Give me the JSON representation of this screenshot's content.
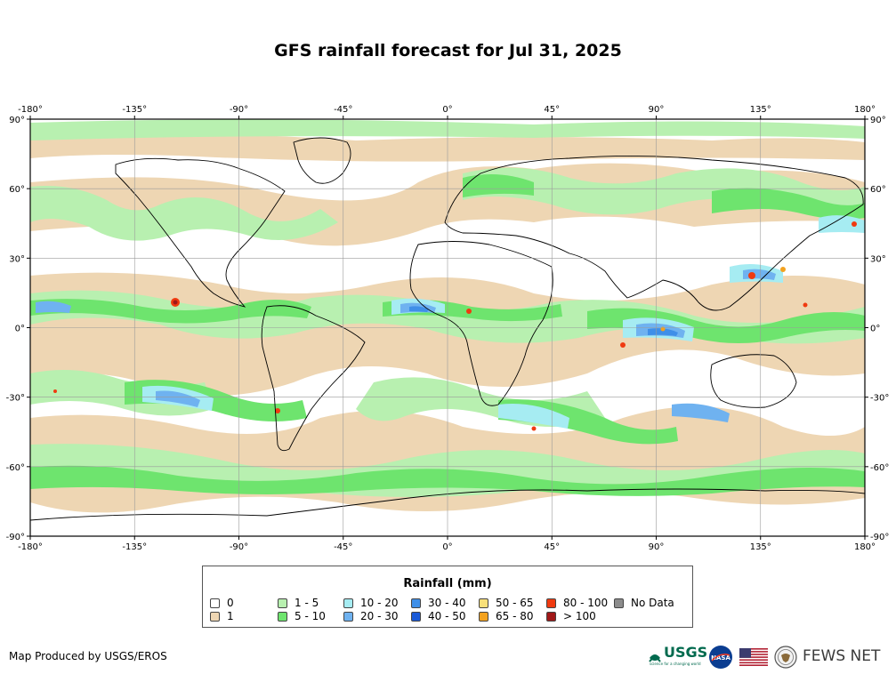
{
  "title": "GFS rainfall forecast for Jul 31, 2025",
  "axes": {
    "lon_ticks": [
      "-180°",
      "-135°",
      "-90°",
      "-45°",
      "0°",
      "45°",
      "90°",
      "135°",
      "180°"
    ],
    "lat_ticks": [
      "90°",
      "60°",
      "30°",
      "0°",
      "-30°",
      "-60°",
      "-90°"
    ]
  },
  "legend": {
    "title": "Rainfall (mm)",
    "items": [
      {
        "label": "0",
        "color": "#ffffff"
      },
      {
        "label": "1",
        "color": "#eed6b3"
      },
      {
        "label": "1 - 5",
        "color": "#b8f0b0"
      },
      {
        "label": "5 - 10",
        "color": "#6ee46e"
      },
      {
        "label": "10 - 20",
        "color": "#a6ecf2"
      },
      {
        "label": "20 - 30",
        "color": "#6fb2f0"
      },
      {
        "label": "30 - 40",
        "color": "#3f8fe8"
      },
      {
        "label": "40 - 50",
        "color": "#1a5ad8"
      },
      {
        "label": "50 - 65",
        "color": "#f8e07a"
      },
      {
        "label": "65 - 80",
        "color": "#f3a21f"
      },
      {
        "label": "80 - 100",
        "color": "#f03a10"
      },
      {
        "label": "> 100",
        "color": "#a01818"
      },
      {
        "label": "No Data",
        "color": "#8c8c8c"
      }
    ]
  },
  "credit": "Map Produced by USGS/EROS",
  "logos": {
    "usgs": "USGS",
    "usgs_tagline": "science for a changing world",
    "nasa": "NASA",
    "fews": "FEWS NET"
  }
}
